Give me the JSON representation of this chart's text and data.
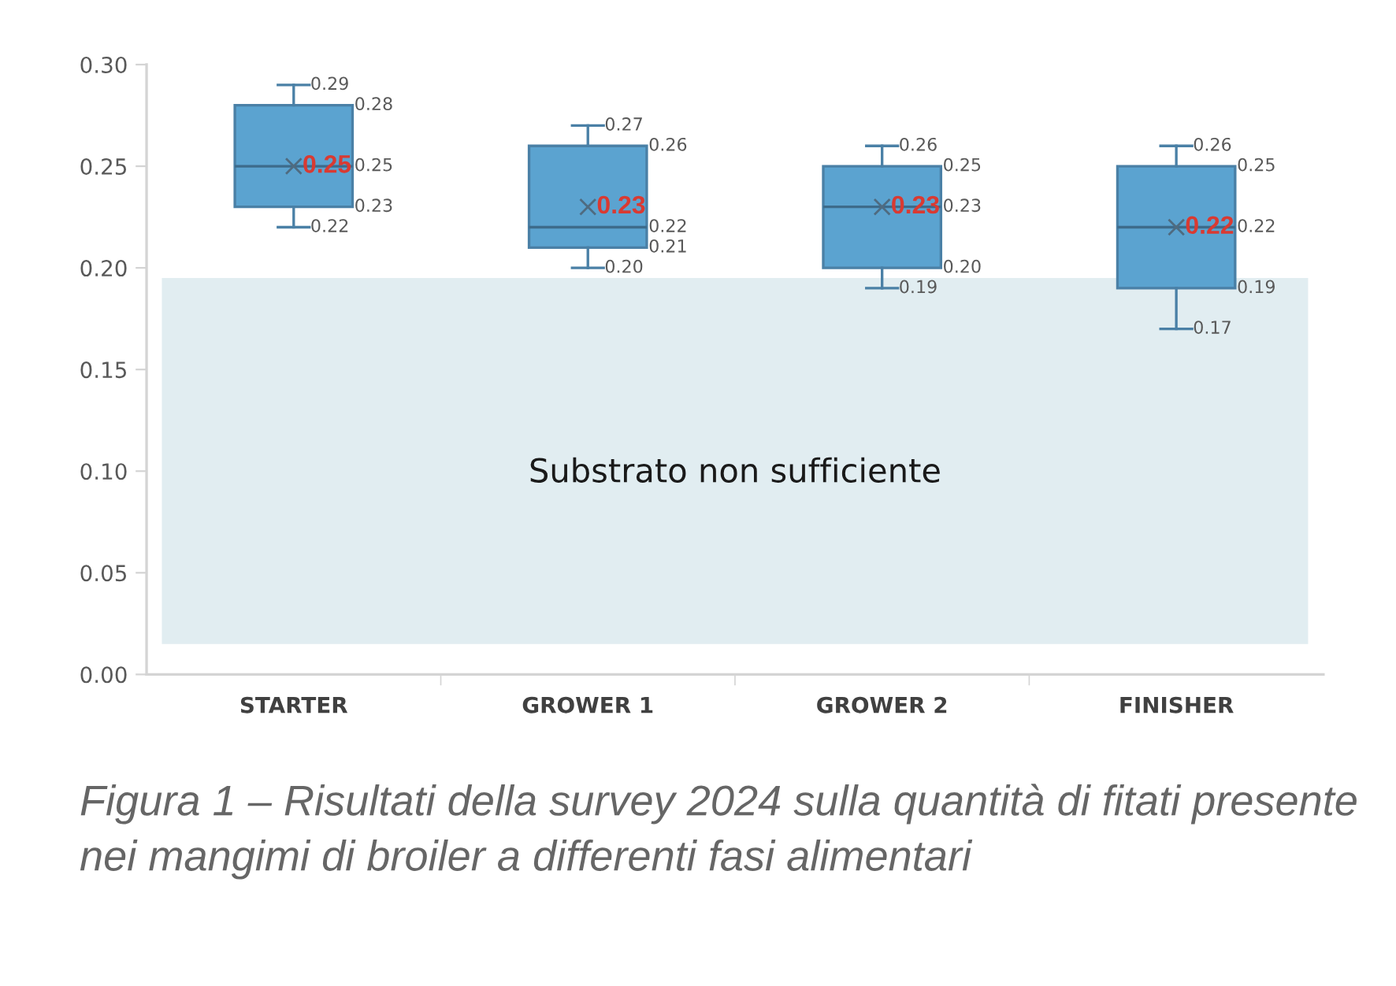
{
  "chart_data": {
    "type": "box",
    "categories": [
      "STARTER",
      "GROWER 1",
      "GROWER 2",
      "FINISHER"
    ],
    "series": [
      {
        "color": "#5ba3d0",
        "boxes": [
          {
            "low": 0.22,
            "q1": 0.23,
            "median": 0.25,
            "q3": 0.28,
            "high": 0.29,
            "mean": 0.25
          },
          {
            "low": 0.2,
            "q1": 0.21,
            "median": 0.22,
            "q3": 0.26,
            "high": 0.27,
            "mean": 0.23
          },
          {
            "low": 0.19,
            "q1": 0.2,
            "median": 0.23,
            "q3": 0.25,
            "high": 0.26,
            "mean": 0.23
          },
          {
            "low": 0.17,
            "q1": 0.19,
            "median": 0.22,
            "q3": 0.25,
            "high": 0.26,
            "mean": 0.22
          }
        ]
      }
    ],
    "ylim": [
      0,
      0.3
    ],
    "yticks": [
      {
        "value": 0,
        "label": "0.00"
      },
      {
        "value": 0.05,
        "label": "0.05"
      },
      {
        "value": 0.1,
        "label": "0.10"
      },
      {
        "value": 0.15,
        "label": "0.15"
      },
      {
        "value": 0.2,
        "label": "0.20"
      },
      {
        "value": 0.25,
        "label": "0.25"
      },
      {
        "value": 0.3,
        "label": "0.30"
      }
    ],
    "bands": [
      {
        "axis": "y",
        "from": 0.015,
        "to": 0.195,
        "label": "Substrato non sufficiente",
        "color": "#a9cad6"
      }
    ],
    "marker": "cross",
    "grid": false,
    "annotations": [
      {
        "text": "0.29",
        "x": "STARTER",
        "y": 0.29
      },
      {
        "text": "0.22",
        "x": "STARTER",
        "y": 0.22
      },
      {
        "text": "0.27",
        "x": "GROWER 1",
        "y": 0.27
      },
      {
        "text": "0.20",
        "x": "GROWER 1",
        "y": 0.2
      },
      {
        "text": "0.26",
        "x": "GROWER 2",
        "y": 0.26
      },
      {
        "text": "0.19",
        "x": "GROWER 2",
        "y": 0.19
      },
      {
        "text": "0.26",
        "x": "FINISHER",
        "y": 0.26
      },
      {
        "text": "0.17",
        "x": "FINISHER",
        "y": 0.17
      },
      "0.28",
      "0.25",
      "0.23",
      "0.25",
      "0.26",
      "0.22",
      "0.21",
      "0.23",
      "0.25",
      "0.23",
      "0.20",
      "0.23",
      "0.25",
      "0.22",
      "0.19",
      "0.22",
      "Figura 1 – Risultati della survey 2024 sulla quantità di fitati presente nei mangimi di broiler a differenti fasi alimentari"
    ]
  }
}
